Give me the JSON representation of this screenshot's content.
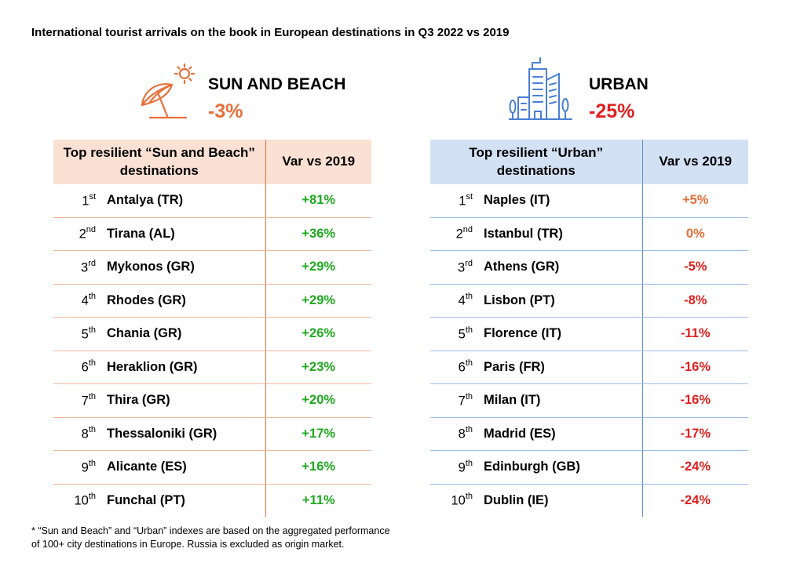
{
  "title": "International tourist arrivals on the book in European destinations in Q3 2022 vs 2019",
  "colors": {
    "sun_accent": "#e8703a",
    "urban_accent": "#4a7fd4",
    "positive": "#1fa91f",
    "negative": "#e02020"
  },
  "chart_data": [
    {
      "type": "table",
      "segment_icon": "beach-umbrella-sun-icon",
      "segment": "SUN AND BEACH",
      "segment_change": "-3%",
      "columns": [
        "Top resilient “Sun and Beach” destinations",
        "Var vs 2019"
      ],
      "rows": [
        {
          "rank": "1",
          "rank_suffix": "st",
          "destination": "Antalya (TR)",
          "value": "+81%"
        },
        {
          "rank": "2",
          "rank_suffix": "nd",
          "destination": "Tirana (AL)",
          "value": "+36%"
        },
        {
          "rank": "3",
          "rank_suffix": "rd",
          "destination": "Mykonos (GR)",
          "value": "+29%"
        },
        {
          "rank": "4",
          "rank_suffix": "th",
          "destination": "Rhodes (GR)",
          "value": "+29%"
        },
        {
          "rank": "5",
          "rank_suffix": "th",
          "destination": "Chania (GR)",
          "value": "+26%"
        },
        {
          "rank": "6",
          "rank_suffix": "th",
          "destination": "Heraklion (GR)",
          "value": "+23%"
        },
        {
          "rank": "7",
          "rank_suffix": "th",
          "destination": "Thira (GR)",
          "value": "+20%"
        },
        {
          "rank": "8",
          "rank_suffix": "th",
          "destination": "Thessaloniki (GR)",
          "value": "+17%"
        },
        {
          "rank": "9",
          "rank_suffix": "th",
          "destination": "Alicante (ES)",
          "value": "+16%"
        },
        {
          "rank": "10",
          "rank_suffix": "th",
          "destination": "Funchal (PT)",
          "value": "+11%"
        }
      ]
    },
    {
      "type": "table",
      "segment_icon": "city-buildings-icon",
      "segment": "URBAN",
      "segment_change": "-25%",
      "columns": [
        "Top resilient “Urban” destinations",
        "Var vs 2019"
      ],
      "rows": [
        {
          "rank": "1",
          "rank_suffix": "st",
          "destination": "Naples (IT)",
          "value": "+5%"
        },
        {
          "rank": "2",
          "rank_suffix": "nd",
          "destination": "Istanbul (TR)",
          "value": "0%"
        },
        {
          "rank": "3",
          "rank_suffix": "rd",
          "destination": "Athens (GR)",
          "value": "-5%"
        },
        {
          "rank": "4",
          "rank_suffix": "th",
          "destination": "Lisbon (PT)",
          "value": "-8%"
        },
        {
          "rank": "5",
          "rank_suffix": "th",
          "destination": "Florence (IT)",
          "value": "-11%"
        },
        {
          "rank": "6",
          "rank_suffix": "th",
          "destination": "Paris (FR)",
          "value": "-16%"
        },
        {
          "rank": "7",
          "rank_suffix": "th",
          "destination": "Milan (IT)",
          "value": "-16%"
        },
        {
          "rank": "8",
          "rank_suffix": "th",
          "destination": "Madrid (ES)",
          "value": "-17%"
        },
        {
          "rank": "9",
          "rank_suffix": "th",
          "destination": "Edinburgh (GB)",
          "value": "-24%"
        },
        {
          "rank": "10",
          "rank_suffix": "th",
          "destination": "Dublin (IE)",
          "value": "-24%"
        }
      ]
    }
  ],
  "footnote": [
    "* “Sun and Beach” and “Urban” indexes are based on the aggregated performance",
    "of 100+ city destinations in Europe. Russia is excluded as origin market."
  ]
}
